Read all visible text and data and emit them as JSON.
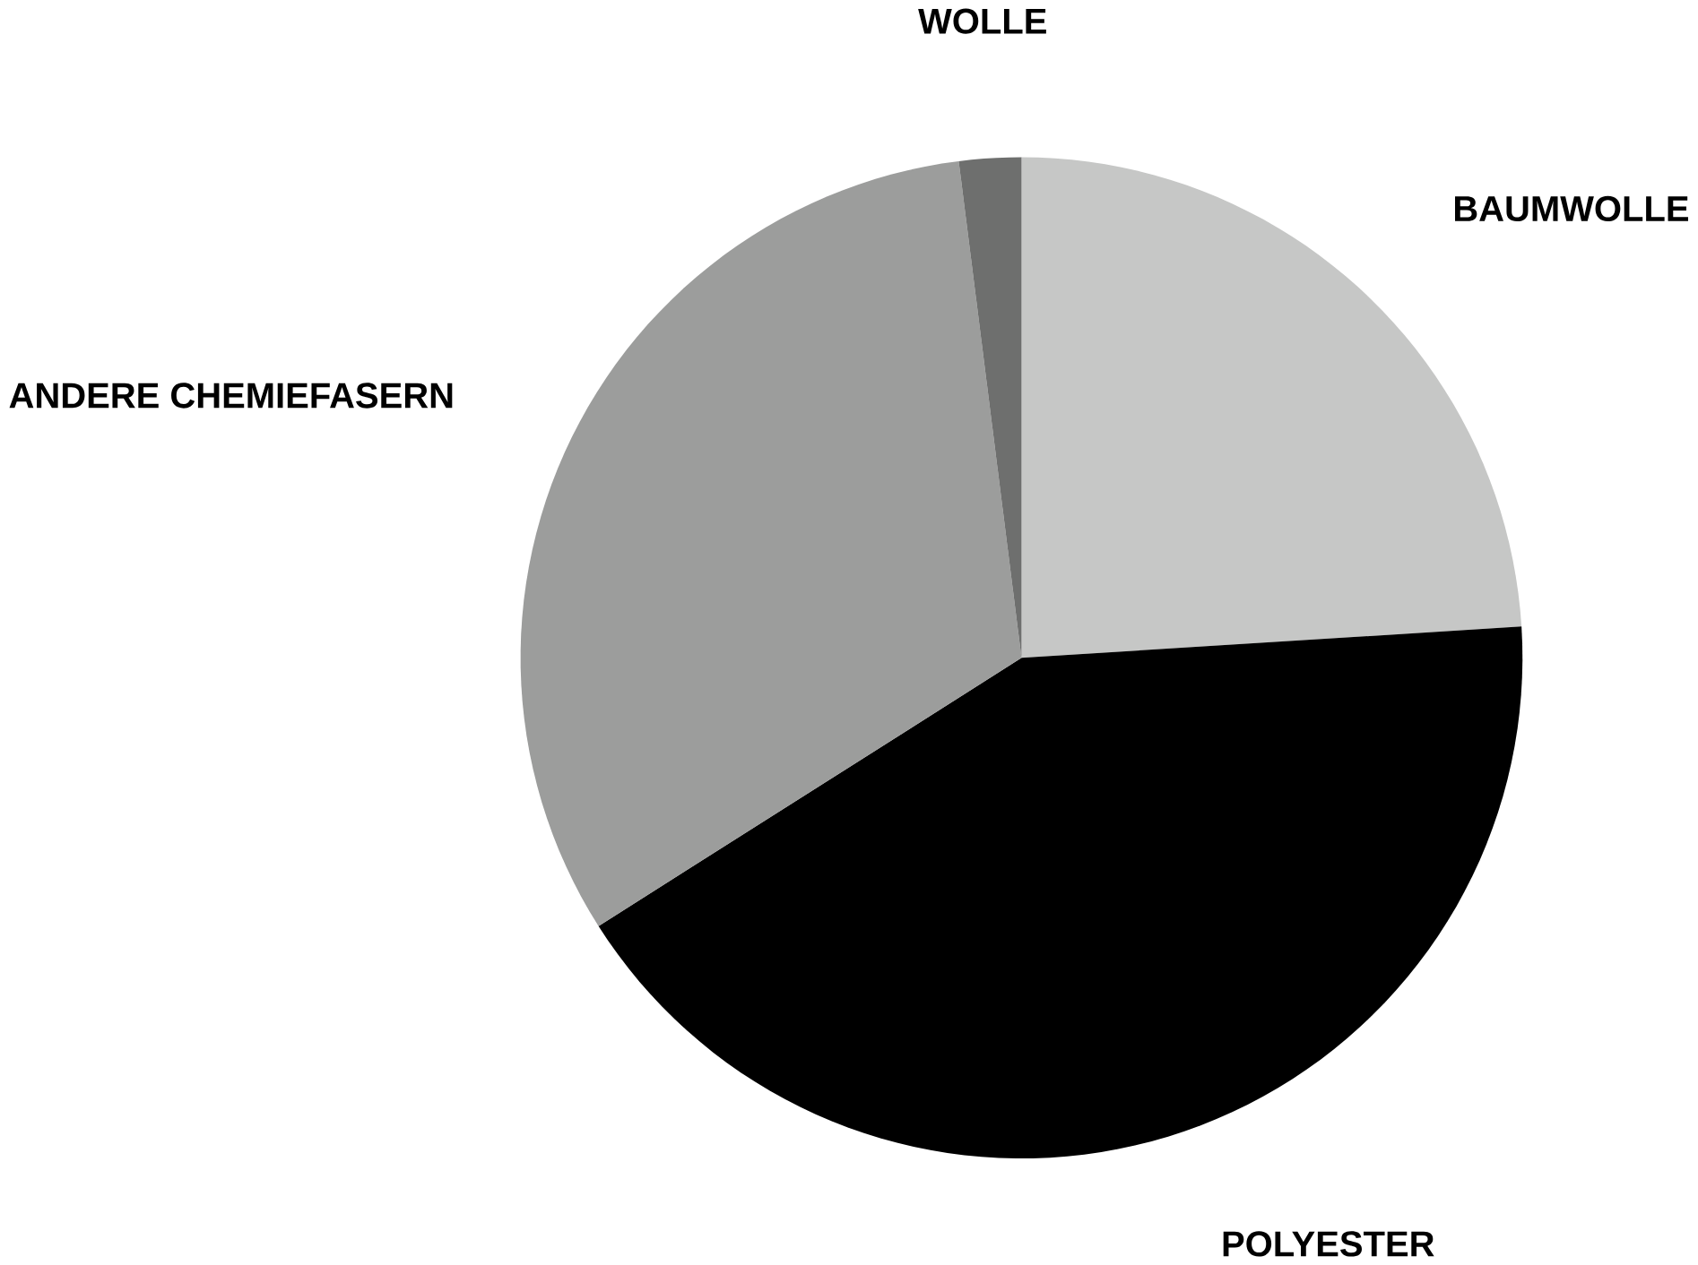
{
  "chart_data": {
    "type": "pie",
    "categories": [
      "BAUMWOLLE",
      "POLYESTER",
      "ANDERE CHEMIEFASERN",
      "WOLLE"
    ],
    "values": [
      24,
      42,
      32,
      2
    ],
    "colors": [
      "#c6c7c6",
      "#000000",
      "#9c9d9c",
      "#6e6f6e"
    ]
  }
}
